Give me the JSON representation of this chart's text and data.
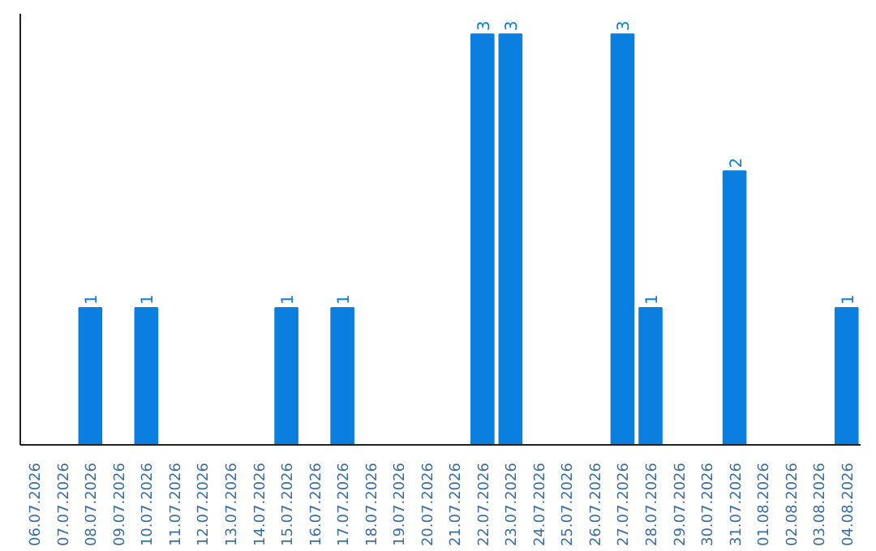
{
  "chart_data": {
    "type": "bar",
    "categories": [
      "06.07.2026",
      "07.07.2026",
      "08.07.2026",
      "09.07.2026",
      "10.07.2026",
      "11.07.2026",
      "12.07.2026",
      "13.07.2026",
      "14.07.2026",
      "15.07.2026",
      "16.07.2026",
      "17.07.2026",
      "18.07.2026",
      "19.07.2026",
      "20.07.2026",
      "21.07.2026",
      "22.07.2026",
      "23.07.2026",
      "24.07.2026",
      "25.07.2026",
      "26.07.2026",
      "27.07.2026",
      "28.07.2026",
      "29.07.2026",
      "30.07.2026",
      "31.07.2026",
      "01.08.2026",
      "02.08.2026",
      "03.08.2026",
      "04.08.2026"
    ],
    "values": [
      0,
      0,
      1,
      0,
      1,
      0,
      0,
      0,
      0,
      1,
      0,
      1,
      0,
      0,
      0,
      0,
      3,
      3,
      0,
      0,
      0,
      3,
      1,
      0,
      0,
      2,
      0,
      0,
      0,
      1
    ],
    "value_labels": [
      null,
      null,
      "1",
      null,
      "1",
      null,
      null,
      null,
      null,
      "1",
      null,
      "1",
      null,
      null,
      null,
      null,
      "3",
      "3",
      null,
      null,
      null,
      "3",
      "1",
      null,
      null,
      "2",
      null,
      null,
      null,
      "1"
    ],
    "color": "#0b7fe0",
    "ylim": [
      0,
      3.15
    ],
    "tick_labels": "x",
    "grid": false
  }
}
